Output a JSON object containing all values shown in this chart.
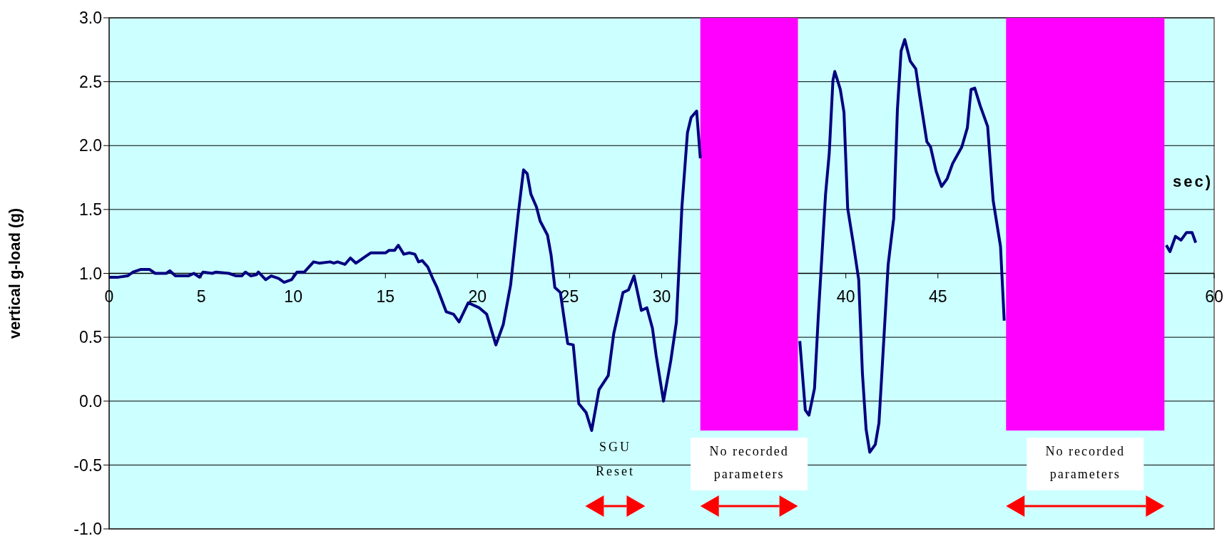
{
  "chart_data": {
    "type": "line",
    "xlabel": "sec)",
    "ylabel": "vertical g-load (g)",
    "x": [
      0,
      0.5,
      1.0,
      1.3,
      1.7,
      2.2,
      2.5,
      3.1,
      3.3,
      3.6,
      4.3,
      4.6,
      4.9,
      5.1,
      5.6,
      5.8,
      6.5,
      6.9,
      7.2,
      7.4,
      7.7,
      8.0,
      8.1,
      8.5,
      8.8,
      9.2,
      9.5,
      9.9,
      10.2,
      10.6,
      11.1,
      11.4,
      12.0,
      12.2,
      12.4,
      12.8,
      13.1,
      13.4,
      13.9,
      14.2,
      15.0,
      15.2,
      15.5,
      15.7,
      16.0,
      16.3,
      16.6,
      16.8,
      17.0,
      17.3,
      17.6,
      17.8,
      18.3,
      18.7,
      19.0,
      19.5,
      20.1,
      20.5,
      21.0,
      21.4,
      21.8,
      22.2,
      22.5,
      22.7,
      22.9,
      23.2,
      23.4,
      23.8,
      24.0,
      24.2,
      24.5,
      24.9,
      25.2,
      25.5,
      25.9,
      26.2,
      26.6,
      27.1,
      27.4,
      27.9,
      28.2,
      28.5,
      28.9,
      29.2,
      29.5,
      29.7,
      30.1,
      30.5,
      30.8,
      31.1,
      31.4,
      31.6,
      31.9,
      32.1,
      35,
      37.5,
      37.8,
      38.0,
      38.3,
      38.5,
      38.9,
      39.1,
      39.3,
      39.4,
      39.7,
      39.9,
      40.1,
      40.4,
      40.7,
      40.9,
      41.1,
      41.3,
      41.6,
      41.8,
      42.3,
      42.6,
      42.8,
      43.0,
      43.2,
      43.5,
      43.8,
      44.0,
      44.4,
      44.6,
      44.9,
      45.2,
      45.5,
      45.8,
      46.3,
      46.6,
      46.8,
      47.0,
      47.3,
      47.7,
      48.0,
      48.4,
      48.6,
      53,
      57.4,
      57.6,
      57.9,
      58.2,
      58.5,
      58.8,
      59.0
    ],
    "series": [
      {
        "color": "#000080",
        "values": [
          0.97,
          0.97,
          0.98,
          1.01,
          1.03,
          1.03,
          1.0,
          1.0,
          1.02,
          0.98,
          0.98,
          1.0,
          0.97,
          1.01,
          1.0,
          1.01,
          1.0,
          0.98,
          0.98,
          1.01,
          0.98,
          0.99,
          1.01,
          0.95,
          0.98,
          0.96,
          0.93,
          0.95,
          1.01,
          1.01,
          1.09,
          1.08,
          1.09,
          1.08,
          1.09,
          1.07,
          1.12,
          1.08,
          1.13,
          1.16,
          1.16,
          1.18,
          1.18,
          1.22,
          1.15,
          1.16,
          1.15,
          1.09,
          1.1,
          1.05,
          0.95,
          0.89,
          0.7,
          0.68,
          0.62,
          0.77,
          0.73,
          0.68,
          0.44,
          0.6,
          0.91,
          1.45,
          1.81,
          1.78,
          1.62,
          1.52,
          1.41,
          1.3,
          1.14,
          0.89,
          0.85,
          0.45,
          0.44,
          -0.02,
          -0.09,
          -0.23,
          0.09,
          0.2,
          0.53,
          0.85,
          0.87,
          0.98,
          0.71,
          0.73,
          0.57,
          0.36,
          0.0,
          0.32,
          0.62,
          1.52,
          2.1,
          2.22,
          2.27,
          1.9,
          null,
          0.47,
          -0.07,
          -0.11,
          0.1,
          0.65,
          1.62,
          1.94,
          2.51,
          2.58,
          2.44,
          2.26,
          1.51,
          1.24,
          0.95,
          0.22,
          -0.22,
          -0.4,
          -0.34,
          -0.17,
          1.07,
          1.43,
          2.28,
          2.74,
          2.83,
          2.66,
          2.6,
          2.4,
          2.03,
          1.99,
          1.8,
          1.68,
          1.74,
          1.86,
          1.99,
          2.14,
          2.44,
          2.45,
          2.31,
          2.15,
          1.57,
          1.21,
          0.63,
          null,
          1.22,
          1.17,
          1.29,
          1.26,
          1.32,
          1.32,
          1.24
        ]
      }
    ],
    "xlim": [
      0,
      60
    ],
    "xticks": [
      0,
      5,
      10,
      15,
      20,
      25,
      30,
      40,
      45,
      60
    ],
    "ylim": [
      -1,
      3
    ],
    "yticks": [
      {
        "value": -1,
        "label": "-1.0"
      },
      {
        "value": -0.5,
        "label": "-0.5"
      },
      {
        "value": 0,
        "label": "0.0"
      },
      {
        "value": 0.5,
        "label": "0.5"
      },
      {
        "value": 1,
        "label": "1.0"
      },
      {
        "value": 1.5,
        "label": "1.5"
      },
      {
        "value": 2,
        "label": "2.0"
      },
      {
        "value": 2.5,
        "label": "2.5"
      },
      {
        "value": 3,
        "label": "3.0"
      }
    ],
    "grid": "y",
    "legend": false,
    "marker": "none",
    "line_style": "solid",
    "bands": [
      {
        "axis": "x",
        "from": 32.1,
        "to": 37.4,
        "label": "No recorded parameters",
        "color": "#ff00ff"
      },
      {
        "axis": "x",
        "from": 48.7,
        "to": 57.3,
        "label": "No recorded parameters",
        "color": "#ff00ff"
      }
    ],
    "annotations": [
      "SGU Reset"
    ]
  }
}
